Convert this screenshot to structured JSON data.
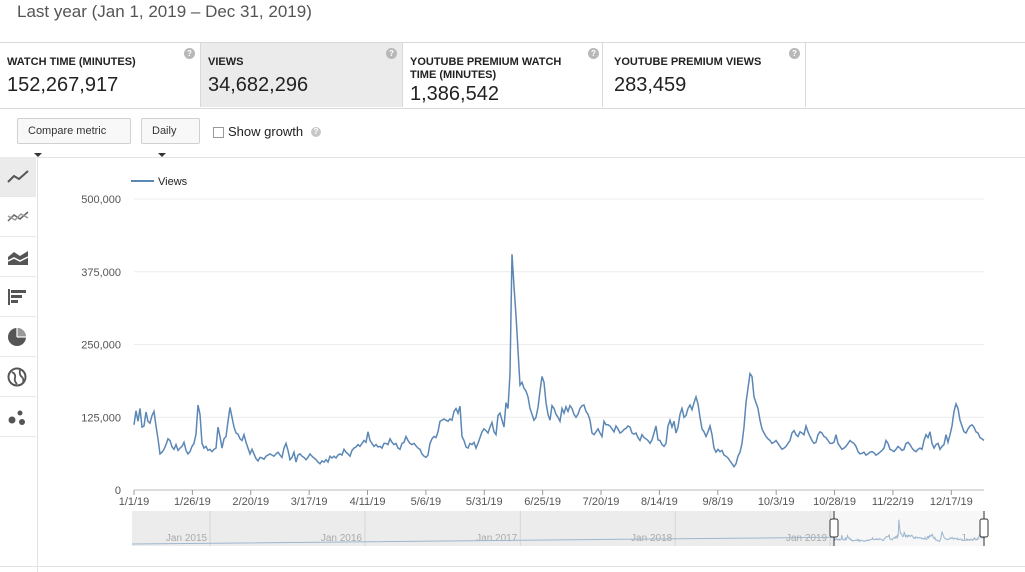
{
  "header": {
    "date_range": "Last year (Jan 1, 2019 – Dec 31, 2019)"
  },
  "metrics": [
    {
      "label": "WATCH TIME (MINUTES)",
      "value": "152,267,917",
      "active": false
    },
    {
      "label": "VIEWS",
      "value": "34,682,296",
      "active": true
    },
    {
      "label": "YOUTUBE PREMIUM WATCH TIME (MINUTES)",
      "value": "1,386,542",
      "active": false
    },
    {
      "label": "YOUTUBE PREMIUM VIEWS",
      "value": "283,459",
      "active": false
    }
  ],
  "help_glyph": "?",
  "controls": {
    "compare_label": "Compare metric",
    "interval_label": "Daily",
    "show_growth_label": "Show growth",
    "show_growth_checked": false
  },
  "sidebar": {
    "items": [
      "line-chart-icon",
      "multiline-chart-icon",
      "stacked-area-icon",
      "bar-chart-icon",
      "pie-chart-icon",
      "globe-map-icon",
      "bubble-chart-icon"
    ]
  },
  "colors": {
    "series": "#5b87b5",
    "grid": "#ececec",
    "axis_text": "#555555",
    "navigator_bg": "#ececec"
  },
  "chart_data": {
    "type": "line",
    "series": [
      {
        "name": "Views",
        "x_start": "2019-01-01",
        "x_end": "2019-12-31",
        "values": [
          112000,
          136000,
          118000,
          140000,
          108000,
          110000,
          134000,
          118000,
          115000,
          128000,
          135000,
          110000,
          88000,
          62000,
          65000,
          70000,
          78000,
          88000,
          85000,
          74000,
          70000,
          78000,
          68000,
          72000,
          75000,
          82000,
          68000,
          62000,
          66000,
          75000,
          80000,
          96000,
          146000,
          130000,
          80000,
          72000,
          75000,
          68000,
          70000,
          66000,
          70000,
          72000,
          108000,
          92000,
          72000,
          88000,
          92000,
          118000,
          142000,
          125000,
          108000,
          98000,
          96000,
          88000,
          85000,
          95000,
          82000,
          72000,
          62000,
          70000,
          62000,
          54000,
          50000,
          56000,
          55000,
          53000,
          58000,
          60000,
          62000,
          60000,
          58000,
          62000,
          65000,
          60000,
          56000,
          72000,
          80000,
          68000,
          52000,
          56000,
          65000,
          48000,
          60000,
          62000,
          58000,
          56000,
          52000,
          56000,
          62000,
          58000,
          55000,
          52000,
          48000,
          45000,
          50000,
          48000,
          52000,
          48000,
          58000,
          55000,
          58000,
          55000,
          60000,
          62000,
          60000,
          70000,
          65000,
          62000,
          58000,
          68000,
          72000,
          74000,
          78000,
          75000,
          80000,
          85000,
          82000,
          100000,
          85000,
          80000,
          75000,
          78000,
          74000,
          75000,
          72000,
          80000,
          80000,
          78000,
          88000,
          82000,
          78000,
          80000,
          72000,
          70000,
          80000,
          82000,
          92000,
          85000,
          80000,
          78000,
          80000,
          76000,
          72000,
          70000,
          62000,
          58000,
          56000,
          60000,
          80000,
          88000,
          92000,
          90000,
          100000,
          118000,
          120000,
          122000,
          120000,
          118000,
          122000,
          120000,
          135000,
          140000,
          132000,
          144000,
          92000,
          85000,
          74000,
          72000,
          80000,
          78000,
          82000,
          72000,
          80000,
          90000,
          100000,
          105000,
          102000,
          98000,
          108000,
          116000,
          100000,
          95000,
          128000,
          132000,
          120000,
          108000,
          150000,
          140000,
          200000,
          405000,
          350000,
          300000,
          240000,
          180000,
          185000,
          175000,
          170000,
          160000,
          140000,
          130000,
          120000,
          125000,
          142000,
          170000,
          195000,
          185000,
          150000,
          130000,
          120000,
          145000,
          140000,
          130000,
          125000,
          118000,
          140000,
          132000,
          143000,
          135000,
          145000,
          140000,
          130000,
          125000,
          130000,
          140000,
          145000,
          146000,
          135000,
          130000,
          120000,
          98000,
          95000,
          100000,
          105000,
          98000,
          92000,
          118000,
          112000,
          112000,
          110000,
          105000,
          100000,
          110000,
          105000,
          98000,
          100000,
          104000,
          106000,
          110000,
          108000,
          98000,
          96000,
          98000,
          90000,
          85000,
          95000,
          90000,
          88000,
          85000,
          80000,
          86000,
          98000,
          110000,
          86000,
          85000,
          78000,
          75000,
          80000,
          110000,
          120000,
          108000,
          118000,
          98000,
          108000,
          130000,
          140000,
          125000,
          128000,
          140000,
          146000,
          138000,
          150000,
          160000,
          148000,
          125000,
          105000,
          100000,
          92000,
          100000,
          110000,
          95000,
          72000,
          65000,
          70000,
          66000,
          68000,
          60000,
          58000,
          55000,
          50000,
          45000,
          40000,
          45000,
          58000,
          65000,
          80000,
          108000,
          150000,
          175000,
          200000,
          195000,
          160000,
          150000,
          140000,
          120000,
          105000,
          98000,
          92000,
          88000,
          85000,
          80000,
          82000,
          85000,
          80000,
          75000,
          70000,
          72000,
          75000,
          80000,
          85000,
          98000,
          102000,
          95000,
          92000,
          100000,
          98000,
          95000,
          110000,
          100000,
          92000,
          85000,
          80000,
          82000,
          95000,
          100000,
          98000,
          92000,
          90000,
          85000,
          80000,
          80000,
          82000,
          95000,
          80000,
          75000,
          70000,
          72000,
          75000,
          80000,
          85000,
          82000,
          80000,
          75000,
          66000,
          62000,
          63000,
          65000,
          60000,
          62000,
          65000,
          66000,
          64000,
          60000,
          62000,
          65000,
          68000,
          72000,
          85000,
          80000,
          70000,
          68000,
          66000,
          70000,
          75000,
          72000,
          68000,
          70000,
          80000,
          82000,
          78000,
          72000,
          68000,
          66000,
          70000,
          72000,
          70000,
          85000,
          95000,
          90000,
          100000,
          80000,
          72000,
          78000,
          80000,
          70000,
          75000,
          78000,
          95000,
          82000,
          95000,
          110000,
          135000,
          148000,
          140000,
          120000,
          110000,
          100000,
          98000,
          105000,
          110000,
          112000,
          108000,
          100000,
          98000,
          90000,
          88000,
          85000
        ]
      }
    ],
    "xlabel": "",
    "ylabel": "",
    "x_tick_labels": [
      "1/1/19",
      "1/26/19",
      "2/20/19",
      "3/17/19",
      "4/11/19",
      "5/6/19",
      "5/31/19",
      "6/25/19",
      "7/20/19",
      "8/14/19",
      "9/8/19",
      "10/3/19",
      "10/28/19",
      "11/22/19",
      "12/17/19"
    ],
    "y_tick_labels": [
      "500,000",
      "375,000",
      "250,000",
      "125,000",
      "0"
    ],
    "ylim": [
      0,
      500000
    ],
    "legend_position": "top-left",
    "grid": true,
    "navigator": {
      "labels": [
        "Jan 2015",
        "Jan 2016",
        "Jan 2017",
        "Jan 2018",
        "Jan 2019",
        "J..."
      ],
      "selection_start": "2019-01-01",
      "selection_end": "2019-12-31"
    }
  }
}
